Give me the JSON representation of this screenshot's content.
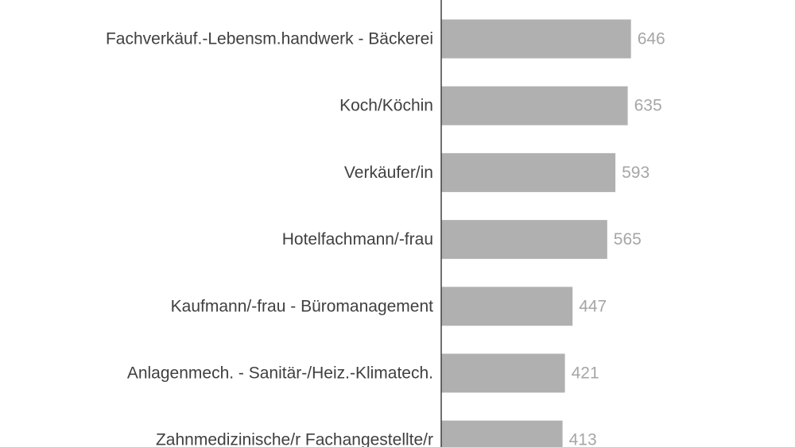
{
  "chart_data": {
    "type": "bar",
    "orientation": "horizontal",
    "categories": [
      "Fachverkäuf.-Lebensm.handwerk - Bäckerei",
      "Koch/Köchin",
      "Verkäufer/in",
      "Hotelfachmann/-frau",
      "Kaufmann/-frau - Büromanagement",
      "Anlagenmech. - Sanitär-/Heiz.-Klimatech.",
      "Zahnmedizinische/r Fachangestellte/r"
    ],
    "values": [
      646,
      635,
      593,
      565,
      447,
      421,
      413
    ],
    "value_labels": [
      "646",
      "635",
      "593",
      "565",
      "447",
      "421",
      "413"
    ],
    "xlim": [
      0,
      700
    ],
    "grid": false,
    "legend": "none",
    "colors": {
      "bar": "#b0b0b0",
      "axis": "#404040",
      "category_text": "#404040",
      "value_text": "#a6a6a6",
      "background": "#ffffff"
    }
  }
}
